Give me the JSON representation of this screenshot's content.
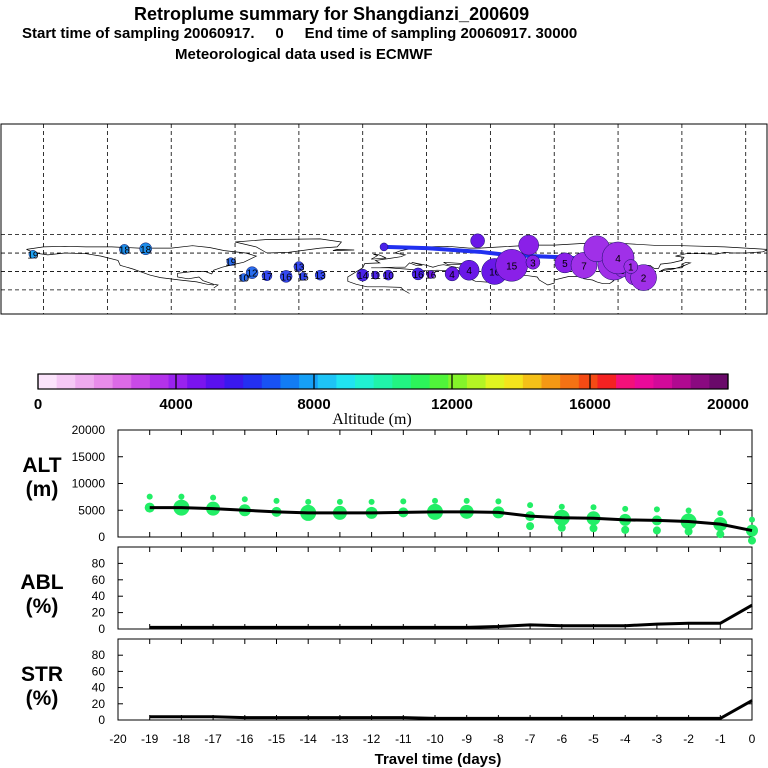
{
  "header": {
    "title": "Retroplume summary for Shangdianzi_200609",
    "subtitle": "Start time of sampling 20060917.     0     End time of sampling 20060917. 30000",
    "met": "Meteorological data used is ECMWF"
  },
  "colorbar": {
    "colors": [
      "#fbe4fb",
      "#f5c8f5",
      "#eeaaef",
      "#e88cea",
      "#dc6ae6",
      "#c94ae6",
      "#b332ea",
      "#9922ee",
      "#7a14ee",
      "#5a10ee",
      "#3a18ee",
      "#2430f2",
      "#1852f4",
      "#127cf4",
      "#16a0f6",
      "#1ec4f6",
      "#20e4f2",
      "#20f2d2",
      "#20f4aa",
      "#22f482",
      "#2cf45a",
      "#50f43a",
      "#84f42a",
      "#b4f424",
      "#e0f420",
      "#f4e41c",
      "#f4c018",
      "#f49814",
      "#f47214",
      "#f44a14",
      "#f42222",
      "#f4107a",
      "#ea0a9a",
      "#d20a9a",
      "#b00a90",
      "#8a0a80",
      "#6a0a6a"
    ],
    "labels": [
      "0",
      "4000",
      "8000",
      "12000",
      "16000",
      "20000"
    ],
    "title": "Altitude (m)"
  },
  "map": {
    "points": [
      {
        "lon": -165,
        "lat": 58,
        "label": "19"
      },
      {
        "lon": -122,
        "lat": 66,
        "label": "18"
      },
      {
        "lon": -112,
        "lat": 67,
        "label": "18"
      },
      {
        "lon": -72,
        "lat": 46,
        "label": "19"
      },
      {
        "lon": -40,
        "lat": 38,
        "label": "13"
      },
      {
        "lon": -62,
        "lat": 28,
        "label": "12"
      },
      {
        "lon": -66,
        "lat": 20,
        "label": "10"
      },
      {
        "lon": -55,
        "lat": 23,
        "label": "17"
      },
      {
        "lon": -46,
        "lat": 22,
        "label": "16"
      },
      {
        "lon": -38,
        "lat": 22,
        "label": "15"
      },
      {
        "lon": -30,
        "lat": 24,
        "label": "13"
      },
      {
        "lon": -10,
        "lat": 24,
        "label": "14"
      },
      {
        "lon": -4,
        "lat": 24,
        "label": "11"
      },
      {
        "lon": 2,
        "lat": 24,
        "label": "10"
      },
      {
        "lon": 16,
        "lat": 26,
        "label": "16"
      },
      {
        "lon": 22,
        "lat": 25,
        "label": "16"
      },
      {
        "lon": 32,
        "lat": 26,
        "label": "4"
      },
      {
        "lon": 40,
        "lat": 32,
        "label": "4"
      },
      {
        "lon": 52,
        "lat": 30,
        "label": "16"
      },
      {
        "lon": 60,
        "lat": 40,
        "label": "15"
      },
      {
        "lon": 70,
        "lat": 45,
        "label": "3"
      },
      {
        "lon": 85,
        "lat": 44,
        "label": "5"
      },
      {
        "lon": 94,
        "lat": 40,
        "label": "7"
      },
      {
        "lon": 108,
        "lat": 42,
        "label": "4"
      },
      {
        "lon": 112,
        "lat": 32,
        "label": "3"
      },
      {
        "lon": 118,
        "lat": 24,
        "label": "2"
      },
      {
        "lon": 122,
        "lat": 20,
        "label": "2"
      },
      {
        "lon": 0,
        "lat": 70,
        "label": ""
      },
      {
        "lon": 44,
        "lat": 80,
        "label": ""
      },
      {
        "lon": 68,
        "lat": 73,
        "label": ""
      },
      {
        "lon": 100,
        "lat": 67,
        "label": ""
      },
      {
        "lon": 110,
        "lat": 52,
        "label": "4"
      },
      {
        "lon": 116,
        "lat": 38,
        "label": "1"
      }
    ]
  },
  "chart_data": [
    {
      "type": "scatter",
      "panel_label": [
        "ALT",
        "(m)"
      ],
      "x": [
        -19,
        -18,
        -17,
        -16,
        -15,
        -14,
        -13,
        -12,
        -11,
        -10,
        -9,
        -8,
        -7,
        -6,
        -5,
        -4,
        -3,
        -2,
        -1,
        0
      ],
      "mean_altitude_m": [
        5500,
        5500,
        5300,
        5000,
        4700,
        4500,
        4500,
        4500,
        4600,
        4700,
        4700,
        4600,
        3900,
        3600,
        3500,
        3200,
        3100,
        2900,
        2400,
        1200
      ],
      "ylim": [
        0,
        20000
      ],
      "yticks": [
        "0",
        "5000",
        "10000",
        "15000",
        "20000"
      ]
    },
    {
      "type": "line",
      "panel_label": [
        "ABL",
        "(%)"
      ],
      "x": [
        -19,
        -18,
        -17,
        -16,
        -15,
        -14,
        -13,
        -12,
        -11,
        -10,
        -9,
        -8,
        -7,
        -6,
        -5,
        -4,
        -3,
        -2,
        -1,
        0
      ],
      "values": [
        2,
        2,
        2,
        2,
        2,
        2,
        2,
        2,
        2,
        2,
        2,
        3,
        5,
        4,
        4,
        4,
        6,
        7,
        7,
        29
      ],
      "ylim": [
        0,
        100
      ],
      "yticks": [
        "0",
        "20",
        "40",
        "60",
        "80"
      ]
    },
    {
      "type": "line",
      "panel_label": [
        "STR",
        "(%)"
      ],
      "x": [
        -19,
        -18,
        -17,
        -16,
        -15,
        -14,
        -13,
        -12,
        -11,
        -10,
        -9,
        -8,
        -7,
        -6,
        -5,
        -4,
        -3,
        -2,
        -1,
        0
      ],
      "values": [
        4,
        4,
        4,
        3,
        3,
        3,
        3,
        3,
        3,
        2,
        2,
        2,
        2,
        2,
        2,
        2,
        2,
        2,
        2,
        24
      ],
      "ylim": [
        0,
        100
      ],
      "yticks": [
        "0",
        "20",
        "40",
        "60",
        "80"
      ]
    }
  ],
  "xaxis": {
    "ticks": [
      "-20",
      "-19",
      "-18",
      "-17",
      "-16",
      "-15",
      "-14",
      "-13",
      "-12",
      "-11",
      "-10",
      "-9",
      "-8",
      "-7",
      "-6",
      "-5",
      "-4",
      "-3",
      "-2",
      "-1",
      "0"
    ],
    "label": "Travel time (days)"
  }
}
